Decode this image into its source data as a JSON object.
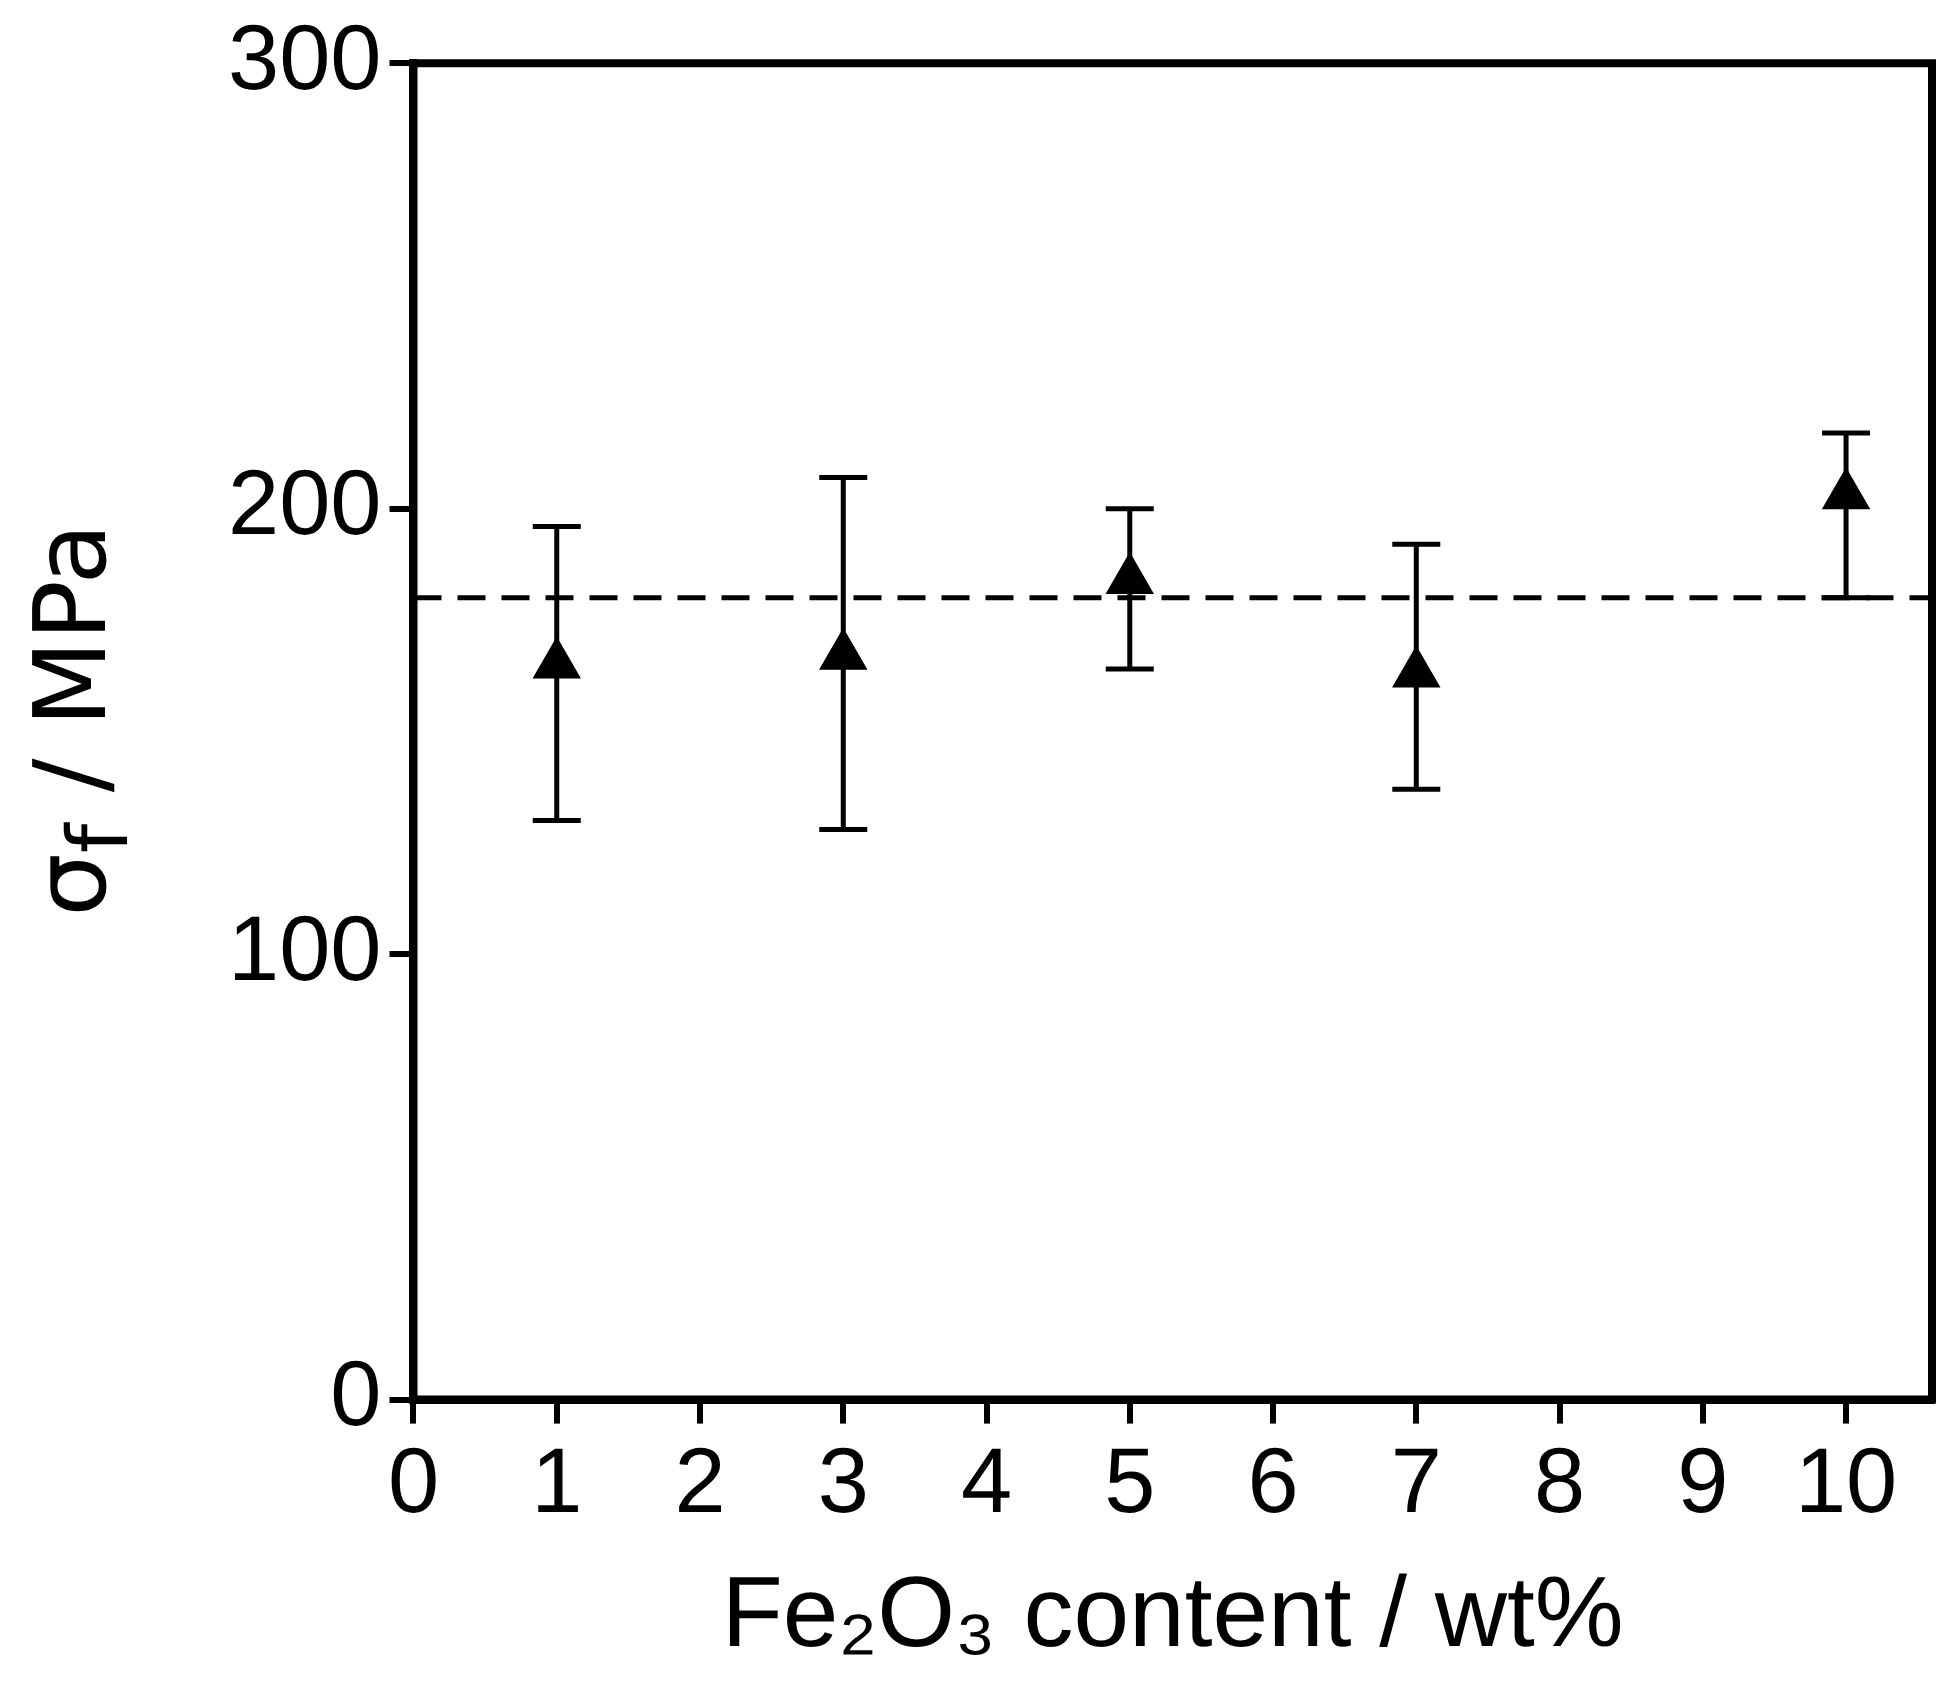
{
  "chart_data": {
    "type": "scatter",
    "xlabel": "Fe₂O₃ content / wt%",
    "ylabel": "σ$_{f}$ / MPa",
    "xlim": [
      0,
      10.6
    ],
    "xticks": [
      0,
      1,
      2,
      3,
      4,
      5,
      6,
      7,
      8,
      9,
      10
    ],
    "ylim": [
      0,
      300
    ],
    "yticks": [
      0,
      100,
      200,
      300
    ],
    "series": [
      {
        "color": "#000000",
        "x": [
          1,
          3,
          5,
          7,
          10
        ],
        "values": [
          165,
          167,
          184,
          163,
          203
        ],
        "errors": [
          [
            130,
            196
          ],
          [
            128,
            207
          ],
          [
            164,
            200
          ],
          [
            137,
            192
          ],
          [
            180,
            217
          ]
        ]
      }
    ],
    "ref_lines": [
      {
        "axis": "y",
        "value": 180,
        "line_style": "dashed",
        "color": "#000000"
      }
    ],
    "marker": "triangle",
    "grid": false,
    "legend": false
  }
}
